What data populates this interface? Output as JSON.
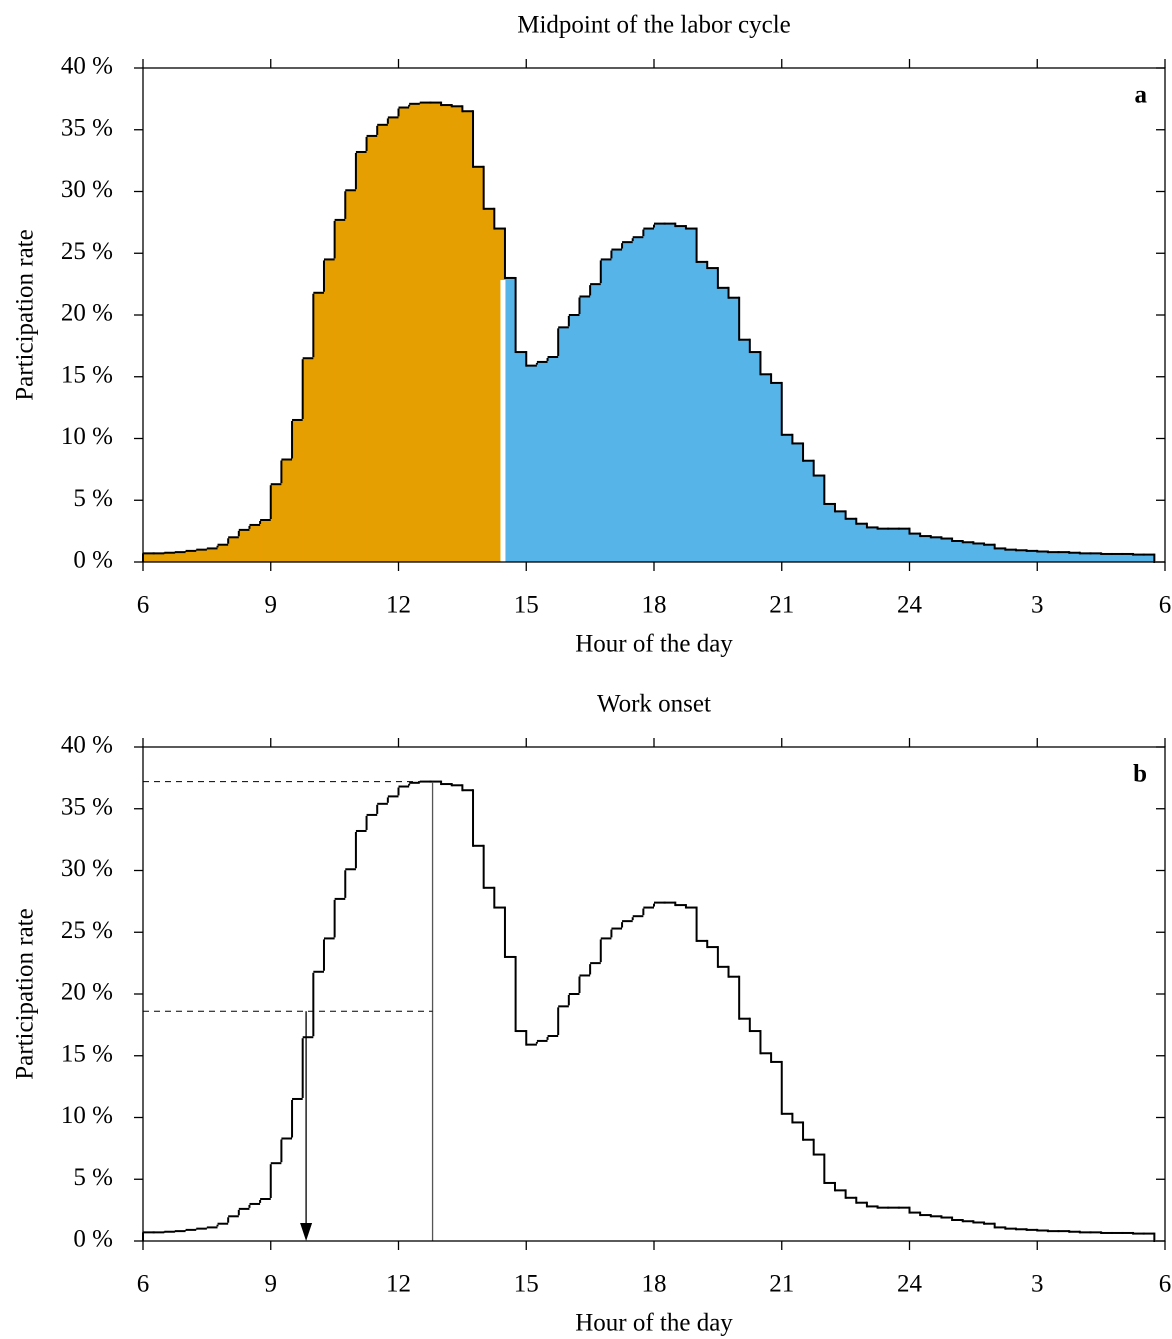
{
  "chart_data": [
    {
      "type": "histogram",
      "title": "Midpoint of the labor cycle",
      "panel_label": "a",
      "x_label": "Hour of the day",
      "y_label": "Participation rate",
      "bins": [
        6,
        6.25,
        6.5,
        6.75,
        7,
        7.25,
        7.5,
        7.75,
        8,
        8.25,
        8.5,
        8.75,
        9,
        9.25,
        9.5,
        9.75,
        10,
        10.25,
        10.5,
        10.75,
        11,
        11.25,
        11.5,
        11.75,
        12,
        12.25,
        12.5,
        12.75,
        13,
        13.25,
        13.5,
        13.75,
        14,
        14.25,
        14.5,
        14.75,
        15,
        15.25,
        15.5,
        15.75,
        16,
        16.25,
        16.5,
        16.75,
        17,
        17.25,
        17.5,
        17.75,
        18,
        18.25,
        18.5,
        18.75,
        19,
        19.25,
        19.5,
        19.75,
        20,
        20.25,
        20.5,
        20.75,
        21,
        21.25,
        21.5,
        21.75,
        22,
        22.25,
        22.5,
        22.75,
        23,
        23.25,
        23.5,
        23.75,
        24,
        24.25,
        24.5,
        24.75,
        25,
        25.25,
        25.5,
        25.75,
        26,
        26.25,
        26.5,
        26.75,
        27,
        27.25,
        27.5,
        27.75,
        28,
        28.25,
        28.5,
        28.75,
        29,
        29.25,
        29.5,
        29.75
      ],
      "values": [
        0.7,
        0.7,
        0.75,
        0.8,
        0.9,
        1.0,
        1.1,
        1.4,
        2.0,
        2.6,
        3.0,
        3.4,
        6.3,
        8.3,
        11.5,
        16.5,
        21.8,
        24.5,
        27.7,
        30.1,
        33.2,
        34.5,
        35.4,
        36.0,
        36.8,
        37.1,
        37.2,
        37.2,
        37.0,
        36.9,
        36.5,
        32.0,
        28.6,
        27.0,
        23.0,
        17.0,
        15.9,
        16.2,
        16.6,
        19.0,
        20.0,
        21.5,
        22.5,
        24.5,
        25.3,
        25.9,
        26.3,
        27.0,
        27.4,
        27.4,
        27.2,
        27.0,
        24.3,
        23.8,
        22.2,
        21.4,
        18.0,
        17.0,
        15.2,
        14.5,
        10.3,
        9.6,
        8.2,
        7.0,
        4.7,
        4.1,
        3.5,
        3.1,
        2.8,
        2.7,
        2.7,
        2.7,
        2.3,
        2.1,
        2.0,
        1.9,
        1.7,
        1.6,
        1.5,
        1.4,
        1.1,
        1.0,
        0.95,
        0.9,
        0.85,
        0.8,
        0.8,
        0.75,
        0.7,
        0.7,
        0.65,
        0.65,
        0.65,
        0.6,
        0.6
      ],
      "colors": [
        "#e69f00",
        "#56b4e9"
      ],
      "color_split_x": 14.5,
      "xlim": [
        6,
        30
      ],
      "xticks": [
        6,
        9,
        12,
        15,
        18,
        21,
        24,
        {
          "value": 27,
          "label": "3"
        },
        {
          "value": 30,
          "label": "6"
        }
      ],
      "ylim": [
        0,
        40
      ],
      "yticks": [
        {
          "value": 0,
          "label": "0 %"
        },
        {
          "value": 5,
          "label": "5 %"
        },
        {
          "value": 10,
          "label": "10 %"
        },
        {
          "value": 15,
          "label": "15 %"
        },
        {
          "value": 20,
          "label": "20 %"
        },
        {
          "value": 25,
          "label": "25 %"
        },
        {
          "value": 30,
          "label": "30 %"
        },
        {
          "value": 35,
          "label": "35 %"
        },
        {
          "value": 40,
          "label": "40 %"
        }
      ]
    },
    {
      "type": "histogram",
      "title": "Work onset",
      "panel_label": "b",
      "x_label": "Hour of the day",
      "y_label": "Participation rate",
      "bins": [
        6,
        6.25,
        6.5,
        6.75,
        7,
        7.25,
        7.5,
        7.75,
        8,
        8.25,
        8.5,
        8.75,
        9,
        9.25,
        9.5,
        9.75,
        10,
        10.25,
        10.5,
        10.75,
        11,
        11.25,
        11.5,
        11.75,
        12,
        12.25,
        12.5,
        12.75,
        13,
        13.25,
        13.5,
        13.75,
        14,
        14.25,
        14.5,
        14.75,
        15,
        15.25,
        15.5,
        15.75,
        16,
        16.25,
        16.5,
        16.75,
        17,
        17.25,
        17.5,
        17.75,
        18,
        18.25,
        18.5,
        18.75,
        19,
        19.25,
        19.5,
        19.75,
        20,
        20.25,
        20.5,
        20.75,
        21,
        21.25,
        21.5,
        21.75,
        22,
        22.25,
        22.5,
        22.75,
        23,
        23.25,
        23.5,
        23.75,
        24,
        24.25,
        24.5,
        24.75,
        25,
        25.25,
        25.5,
        25.75,
        26,
        26.25,
        26.5,
        26.75,
        27,
        27.25,
        27.5,
        27.75,
        28,
        28.25,
        28.5,
        28.75,
        29,
        29.25,
        29.5,
        29.75
      ],
      "values": [
        0.7,
        0.7,
        0.75,
        0.8,
        0.9,
        1.0,
        1.1,
        1.4,
        2.0,
        2.6,
        3.0,
        3.4,
        6.3,
        8.3,
        11.5,
        16.5,
        21.8,
        24.5,
        27.7,
        30.1,
        33.2,
        34.5,
        35.4,
        36.0,
        36.8,
        37.1,
        37.2,
        37.2,
        37.0,
        36.9,
        36.5,
        32.0,
        28.6,
        27.0,
        23.0,
        17.0,
        15.9,
        16.2,
        16.6,
        19.0,
        20.0,
        21.5,
        22.5,
        24.5,
        25.3,
        25.9,
        26.3,
        27.0,
        27.4,
        27.4,
        27.2,
        27.0,
        24.3,
        23.8,
        22.2,
        21.4,
        18.0,
        17.0,
        15.2,
        14.5,
        10.3,
        9.6,
        8.2,
        7.0,
        4.7,
        4.1,
        3.5,
        3.1,
        2.8,
        2.7,
        2.7,
        2.7,
        2.3,
        2.1,
        2.0,
        1.9,
        1.7,
        1.6,
        1.5,
        1.4,
        1.1,
        1.0,
        0.95,
        0.9,
        0.85,
        0.8,
        0.8,
        0.75,
        0.7,
        0.7,
        0.65,
        0.65,
        0.65,
        0.6,
        0.6
      ],
      "annotations": {
        "peak": [
          12.8,
          37.2
        ],
        "half_max": 18.6,
        "onset": 9.83
      },
      "xlim": [
        6,
        30
      ],
      "xticks": [
        6,
        9,
        12,
        15,
        18,
        21,
        24,
        {
          "value": 27,
          "label": "3"
        },
        {
          "value": 30,
          "label": "6"
        }
      ],
      "ylim": [
        0,
        40
      ],
      "yticks": [
        {
          "value": 0,
          "label": "0 %"
        },
        {
          "value": 5,
          "label": "5 %"
        },
        {
          "value": 10,
          "label": "10 %"
        },
        {
          "value": 15,
          "label": "15 %"
        },
        {
          "value": 20,
          "label": "20 %"
        },
        {
          "value": 25,
          "label": "25 %"
        },
        {
          "value": 30,
          "label": "30 %"
        },
        {
          "value": 35,
          "label": "35 %"
        },
        {
          "value": 40,
          "label": "40 %"
        }
      ]
    }
  ]
}
